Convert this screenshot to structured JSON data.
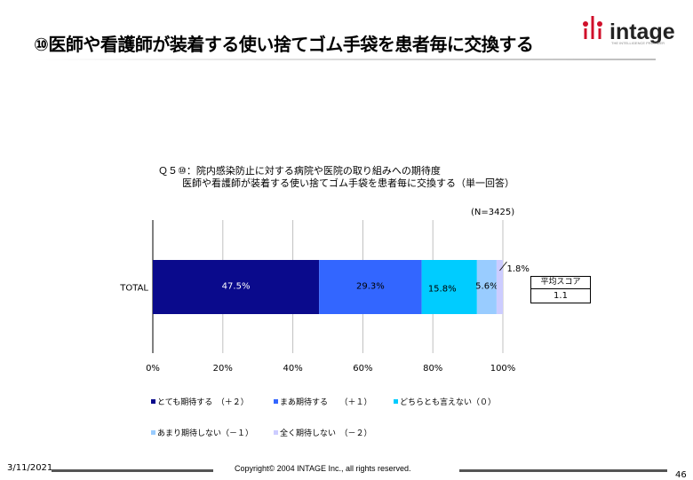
{
  "slide": {
    "title": "⑩医師や看護師が装着する使い捨てゴム手袋を患者毎に交換する",
    "brand": "intage",
    "brand_tagline": "THE INTELLIGENCE PROVIDER",
    "footer_date": "3/11/2021",
    "copyright": "Copyright© 2004 INTAGE Inc., all rights reserved.",
    "page_number": "46"
  },
  "colors": {
    "s1": "#0a0a8c",
    "s2": "#3366ff",
    "s3": "#00ccff",
    "s4": "#99ccff",
    "s5": "#ccccff",
    "grid": "#c0c0c0"
  },
  "chart_data": {
    "type": "bar",
    "orientation": "horizontal",
    "stacked": true,
    "title": "Ｑ５⑩：院内感染防止に対する病院や医院の取り組みへの期待度",
    "subtitle": "医師や看護師が装着する使い捨てゴム手袋を患者毎に交換する（単一回答）",
    "sample_size": "(N=3425)",
    "categories": [
      "TOTAL"
    ],
    "series": [
      {
        "name": "とても期待する　（＋２）",
        "values": [
          47.5
        ],
        "label": "47.5%"
      },
      {
        "name": "まあ期待する　　（＋１）",
        "values": [
          29.3
        ],
        "label": "29.3%"
      },
      {
        "name": "どちらとも言えない（０）",
        "values": [
          15.8
        ],
        "label": "15.8%"
      },
      {
        "name": "あまり期待しない（－１）",
        "values": [
          5.6
        ],
        "label": "5.6%"
      },
      {
        "name": "全く期待しない　（－２）",
        "values": [
          1.8
        ],
        "label": "1.8%"
      }
    ],
    "xlim": [
      0,
      100
    ],
    "x_ticks": [
      "0%",
      "20%",
      "40%",
      "60%",
      "80%",
      "100%"
    ],
    "grid": true,
    "legend_position": "bottom",
    "average_score": {
      "header": "平均スコア",
      "value": "1.1"
    }
  }
}
